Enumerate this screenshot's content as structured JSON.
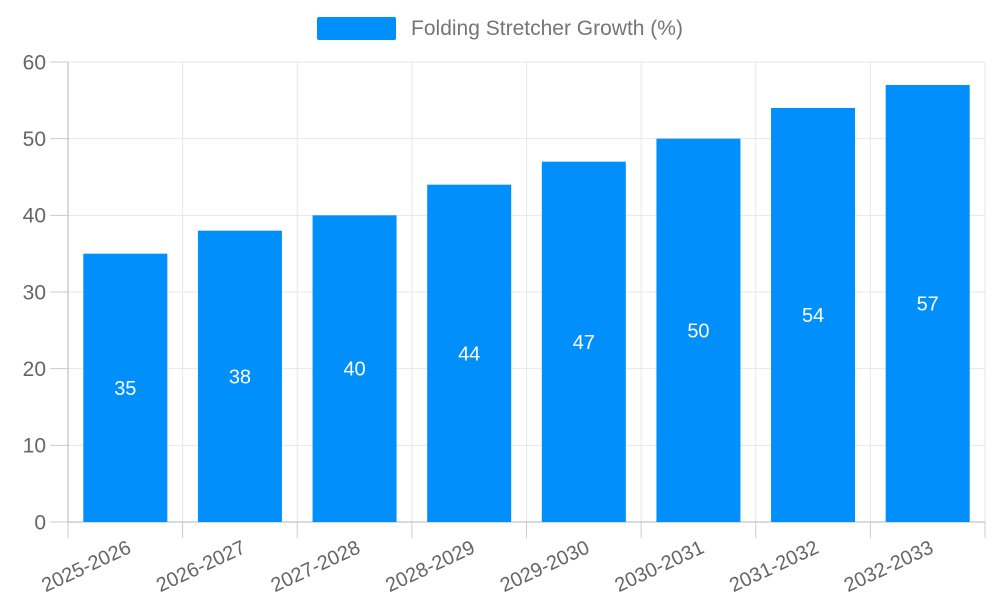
{
  "chart_data": {
    "type": "bar",
    "title": "",
    "legend": "Folding Stretcher Growth (%)",
    "legend_position": "top-center",
    "categories": [
      "2025-2026",
      "2026-2027",
      "2027-2028",
      "2028-2029",
      "2029-2030",
      "2030-2031",
      "2031-2032",
      "2032-2033"
    ],
    "values": [
      35,
      38,
      40,
      44,
      47,
      50,
      54,
      57
    ],
    "xlabel": "",
    "ylabel": "",
    "ylim": [
      0,
      60
    ],
    "yticks": [
      0,
      10,
      20,
      30,
      40,
      50,
      60
    ],
    "grid": true,
    "x_tick_label_rotation_deg": -25,
    "value_labels_position": "inside-center"
  },
  "colors": {
    "bar": "#008FFB",
    "grid": "#e7e7e7",
    "axis": "#b6b6b6",
    "tick": "#cccccc",
    "tick_label": "#666666",
    "value_label": "#ffffff",
    "legend_text": "#757575",
    "background": "#ffffff"
  }
}
